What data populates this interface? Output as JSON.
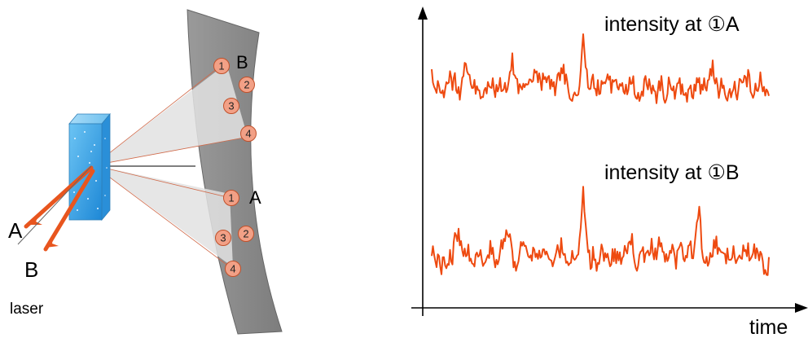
{
  "labels": {
    "beam_a": "A",
    "beam_b": "B",
    "laser": "laser",
    "screen_group_b": "B",
    "screen_group_a": "A",
    "trace_top": "intensity at ①A",
    "trace_bottom": "intensity at ①B",
    "x_axis": "time"
  },
  "spots": {
    "group_b": [
      "1",
      "2",
      "3",
      "4"
    ],
    "group_a": [
      "1",
      "2",
      "3",
      "4"
    ]
  },
  "colors": {
    "laser_beam": "#e8551e",
    "trace": "#ee4a10",
    "spot_fill": "#f2a086",
    "spot_stroke": "#c0502a",
    "screen": "#8c8c8c",
    "crystal": "#3aa6e8"
  },
  "chart_data": {
    "type": "line",
    "xlabel": "time",
    "ylabel": "",
    "series": [
      {
        "name": "intensity at ①A"
      },
      {
        "name": "intensity at ①B"
      }
    ]
  }
}
